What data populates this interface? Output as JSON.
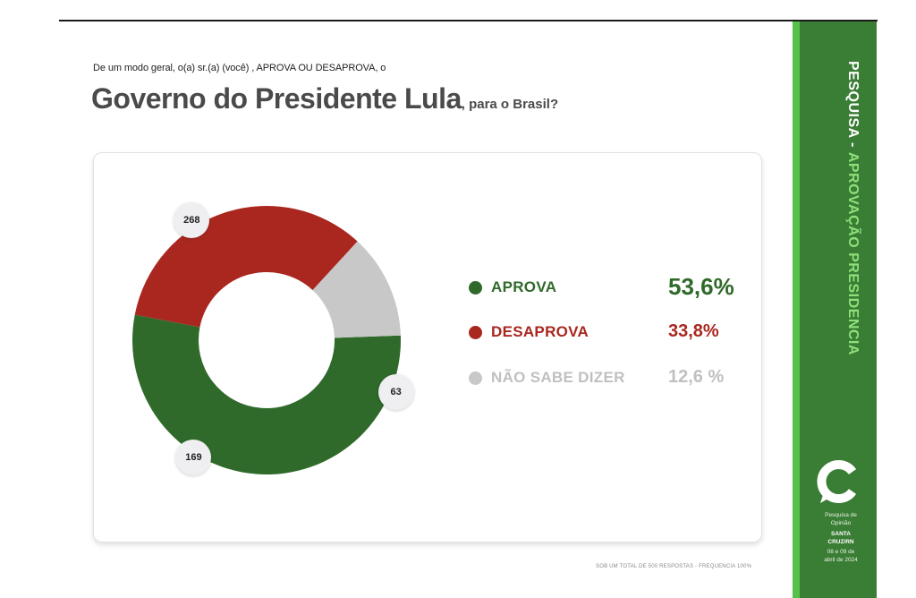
{
  "header": {
    "question": "De um modo geral, o(a) sr.(a) (você) , APROVA OU DESAPROVA, o",
    "title_main": "Governo do Presidente Lula",
    "title_rest": ", para o Brasil?"
  },
  "chart_data": {
    "type": "pie",
    "donut": true,
    "categories": [
      "APROVA",
      "DESAPROVA",
      "NÃO SABE DIZER"
    ],
    "counts": [
      268,
      169,
      63
    ],
    "percent_labels": [
      "53,6%",
      "33,8%",
      "12,6 %"
    ],
    "colors": [
      "#2f6a2a",
      "#a9271f",
      "#c8c8c8"
    ]
  },
  "footnote": "SOB UM TOTAL DE 500 RESPOSTAS - FREQUENCIA 100%",
  "sidebar": {
    "title_white": "PESQUISA - ",
    "title_green": "APROVAÇÃO PRESIDENCIA",
    "line1": "Pesquisa de",
    "line2": "Opinião",
    "city1": "SANTA",
    "city2": "CRUZ/RN",
    "date1": "08 e 09 de",
    "date2": "abril de 2024"
  }
}
